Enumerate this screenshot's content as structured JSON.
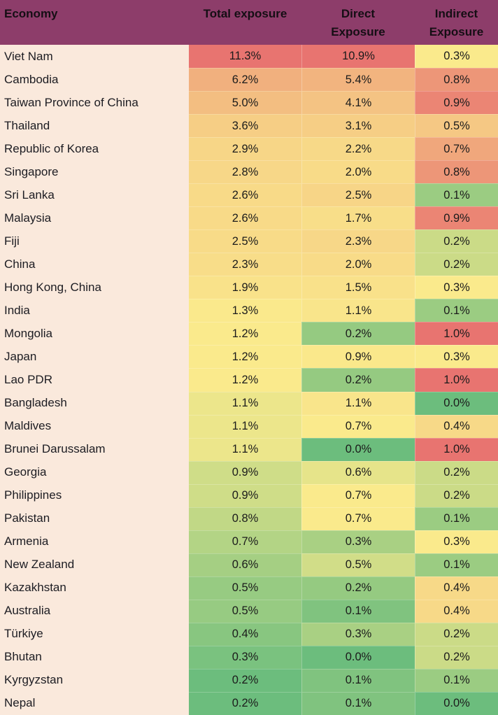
{
  "header": {
    "economy_label": "Economy",
    "columns": [
      {
        "line1": "Total exposure",
        "line2": ""
      },
      {
        "line1": "Direct",
        "line2": "Exposure"
      },
      {
        "line1": "Indirect",
        "line2": "Exposure"
      }
    ]
  },
  "colors": {
    "header_bg": "#8D3D6A",
    "header_text": "#150E14",
    "economy_col_bg": "#FAE9DC",
    "economy_text": "#1C1C22",
    "value_text": "#1B1B1B",
    "scale_green": "#6CBD7D",
    "scale_yellow": "#FAEA8C",
    "scale_red": "#E87470"
  },
  "chart_data": {
    "type": "heatmap",
    "unit": "%",
    "value_format": "percent-one-decimal",
    "columns": [
      {
        "key": "total",
        "label": "Total exposure",
        "scale": {
          "min": 0.2,
          "mid": 1.2,
          "max": 11.3
        }
      },
      {
        "key": "direct",
        "label": "Direct Exposure",
        "scale": {
          "min": 0.0,
          "mid": 0.7,
          "max": 10.9
        }
      },
      {
        "key": "indirect",
        "label": "Indirect Exposure",
        "scale": {
          "min": 0.0,
          "mid": 0.3,
          "max": 1.0
        }
      }
    ],
    "scale_legend": {
      "low": "green",
      "mid": "yellow",
      "high": "red",
      "applied": "per-column"
    },
    "rows": [
      {
        "economy": "Viet Nam",
        "total": 11.3,
        "direct": 10.9,
        "indirect": 0.3
      },
      {
        "economy": "Cambodia",
        "total": 6.2,
        "direct": 5.4,
        "indirect": 0.8
      },
      {
        "economy": "Taiwan Province of China",
        "total": 5.0,
        "direct": 4.1,
        "indirect": 0.9
      },
      {
        "economy": "Thailand",
        "total": 3.6,
        "direct": 3.1,
        "indirect": 0.5
      },
      {
        "economy": "Republic of Korea",
        "total": 2.9,
        "direct": 2.2,
        "indirect": 0.7
      },
      {
        "economy": "Singapore",
        "total": 2.8,
        "direct": 2.0,
        "indirect": 0.8
      },
      {
        "economy": "Sri Lanka",
        "total": 2.6,
        "direct": 2.5,
        "indirect": 0.1
      },
      {
        "economy": "Malaysia",
        "total": 2.6,
        "direct": 1.7,
        "indirect": 0.9
      },
      {
        "economy": "Fiji",
        "total": 2.5,
        "direct": 2.3,
        "indirect": 0.2
      },
      {
        "economy": "China",
        "total": 2.3,
        "direct": 2.0,
        "indirect": 0.2
      },
      {
        "economy": "Hong Kong, China",
        "total": 1.9,
        "direct": 1.5,
        "indirect": 0.3
      },
      {
        "economy": "India",
        "total": 1.3,
        "direct": 1.1,
        "indirect": 0.1
      },
      {
        "economy": "Mongolia",
        "total": 1.2,
        "direct": 0.2,
        "indirect": 1.0
      },
      {
        "economy": "Japan",
        "total": 1.2,
        "direct": 0.9,
        "indirect": 0.3
      },
      {
        "economy": "Lao PDR",
        "total": 1.2,
        "direct": 0.2,
        "indirect": 1.0
      },
      {
        "economy": "Bangladesh",
        "total": 1.1,
        "direct": 1.1,
        "indirect": 0.0
      },
      {
        "economy": "Maldives",
        "total": 1.1,
        "direct": 0.7,
        "indirect": 0.4
      },
      {
        "economy": "Brunei Darussalam",
        "total": 1.1,
        "direct": 0.0,
        "indirect": 1.0
      },
      {
        "economy": "Georgia",
        "total": 0.9,
        "direct": 0.6,
        "indirect": 0.2
      },
      {
        "economy": "Philippines",
        "total": 0.9,
        "direct": 0.7,
        "indirect": 0.2
      },
      {
        "economy": "Pakistan",
        "total": 0.8,
        "direct": 0.7,
        "indirect": 0.1
      },
      {
        "economy": "Armenia",
        "total": 0.7,
        "direct": 0.3,
        "indirect": 0.3
      },
      {
        "economy": "New Zealand",
        "total": 0.6,
        "direct": 0.5,
        "indirect": 0.1
      },
      {
        "economy": "Kazakhstan",
        "total": 0.5,
        "direct": 0.2,
        "indirect": 0.4
      },
      {
        "economy": "Australia",
        "total": 0.5,
        "direct": 0.1,
        "indirect": 0.4
      },
      {
        "economy": "Türkiye",
        "total": 0.4,
        "direct": 0.3,
        "indirect": 0.2
      },
      {
        "economy": "Bhutan",
        "total": 0.3,
        "direct": 0.0,
        "indirect": 0.2
      },
      {
        "economy": "Kyrgyzstan",
        "total": 0.2,
        "direct": 0.1,
        "indirect": 0.1
      },
      {
        "economy": "Nepal",
        "total": 0.2,
        "direct": 0.1,
        "indirect": 0.0
      }
    ]
  }
}
